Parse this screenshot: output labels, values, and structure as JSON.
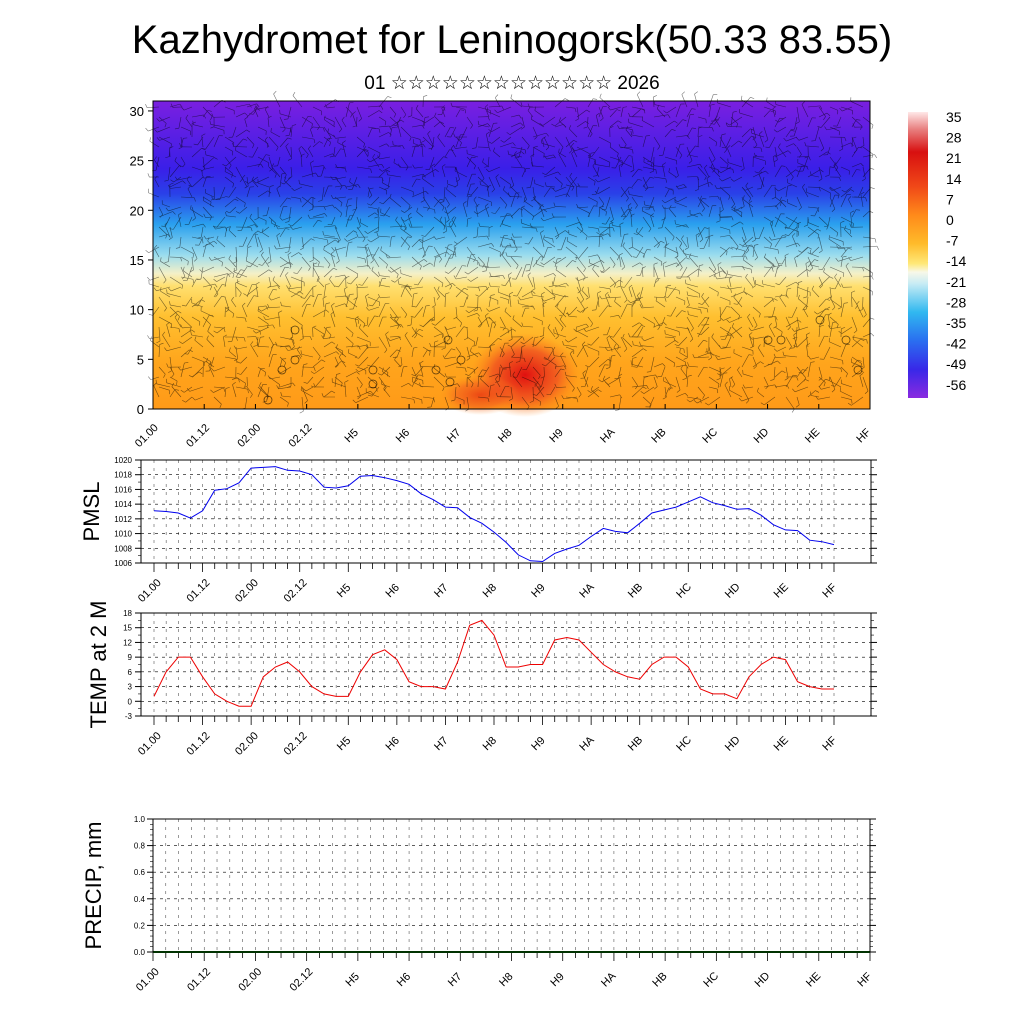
{
  "header": {
    "title": "Kazhydromet for Leninogorsk(50.33 83.55)",
    "subtitle": "01 ☆☆☆☆☆☆☆☆☆☆☆☆☆ 2026"
  },
  "colors": {
    "pmsl_line": "#0000ee",
    "temp_line": "#ee0000",
    "precip_line": "#006400",
    "grid": "#000000"
  },
  "chart_data": [
    {
      "id": "cross-section",
      "type": "heatmap",
      "title": "",
      "xlabel": "",
      "ylabel": "",
      "x_tick_labels": [
        "01.00",
        "01.12",
        "02.00",
        "02.12",
        "H5",
        "H6",
        "H7",
        "H8",
        "H9",
        "HA",
        "HB",
        "HC",
        "HD",
        "HE",
        "HF"
      ],
      "y_ticks": [
        0,
        5,
        10,
        15,
        20,
        25,
        30
      ],
      "ylim": [
        0,
        31
      ],
      "colorbar": {
        "labels": [
          "35",
          "28",
          "21",
          "14",
          "7",
          "0",
          "-7",
          "-14",
          "-21",
          "-28",
          "-35",
          "-42",
          "-49",
          "-56"
        ],
        "range": [
          -60,
          38
        ],
        "colors": [
          "#7a1fe0",
          "#3a2ee0",
          "#2a6cf0",
          "#2ab0f0",
          "#8fd8f0",
          "#eef6e0",
          "#ffe97a",
          "#ffcc33",
          "#ffaa22",
          "#ff7a1a",
          "#f04018",
          "#d01010",
          "#e8a0a0",
          "#ffe8e8"
        ]
      },
      "wind_barbs": "dense"
    },
    {
      "id": "pmsl",
      "type": "line",
      "ylabel": "PMSL",
      "ylim": [
        1006,
        1020
      ],
      "y_ticks": [
        1006,
        1008,
        1010,
        1012,
        1014,
        1016,
        1018,
        1020
      ],
      "x_tick_labels": [
        "01.00",
        "01.12",
        "02.00",
        "02.12",
        "H5",
        "H6",
        "H7",
        "H8",
        "H9",
        "HA",
        "HB",
        "HC",
        "HD",
        "HE",
        "HF"
      ],
      "x_tick_index": [
        0,
        4,
        8,
        12,
        16,
        20,
        24,
        28,
        32,
        36,
        40,
        44,
        48,
        52,
        56
      ],
      "series": [
        {
          "values": [
            1013.1,
            1013,
            1012.8,
            1012.1,
            1013.1,
            1015.9,
            1016.1,
            1016.9,
            1018.9,
            1019,
            1019.1,
            1018.6,
            1018.5,
            1018,
            1016.3,
            1016.2,
            1016.5,
            1017.8,
            1017.9,
            1017.6,
            1017.2,
            1016.7,
            1015.4,
            1014.6,
            1013.6,
            1013.5,
            1012.2,
            1011.4,
            1010.2,
            1008.8,
            1007.1,
            1006.3,
            1006.2,
            1007.3,
            1007.9,
            1008.4,
            1009.6,
            1010.7,
            1010.3,
            1010.1,
            1011.4,
            1012.8,
            1013.2,
            1013.6,
            1014.3,
            1015,
            1014.2,
            1013.8,
            1013.3,
            1013.4,
            1012.5,
            1011.2,
            1010.5,
            1010.4,
            1009.1,
            1008.9,
            1008.5
          ]
        }
      ]
    },
    {
      "id": "temp",
      "type": "line",
      "ylabel": "TEMP at 2 M",
      "ylim": [
        -3,
        18
      ],
      "y_ticks": [
        -3,
        0,
        3,
        6,
        9,
        12,
        15,
        18
      ],
      "x_tick_labels": [
        "01.00",
        "01.12",
        "02.00",
        "02.12",
        "H5",
        "H6",
        "H7",
        "H8",
        "H9",
        "HA",
        "HB",
        "HC",
        "HD",
        "HE",
        "HF"
      ],
      "x_tick_index": [
        0,
        4,
        8,
        12,
        16,
        20,
        24,
        28,
        32,
        36,
        40,
        44,
        48,
        52,
        56
      ],
      "series": [
        {
          "values": [
            1,
            6,
            9,
            9,
            5,
            1.5,
            0,
            -1,
            -1,
            5,
            7,
            8,
            6,
            3,
            1.5,
            1,
            1,
            6,
            9.5,
            10.5,
            8.5,
            4,
            3,
            3,
            2.5,
            8,
            15.5,
            16.5,
            13.5,
            7,
            7,
            7.5,
            7.5,
            12.5,
            13,
            12.5,
            10,
            7.5,
            6,
            5,
            4.5,
            7.5,
            9,
            9,
            7,
            2.5,
            1.5,
            1.5,
            0.5,
            5,
            7.5,
            9,
            8.5,
            4,
            3,
            2.5,
            2.5
          ]
        }
      ]
    },
    {
      "id": "precip",
      "type": "bar",
      "ylabel": "PRECIP, mm",
      "ylim": [
        0,
        1.0
      ],
      "y_ticks": [
        "0.0",
        "0.2",
        "0.4",
        "0.6",
        "0.8",
        "1.0"
      ],
      "x_tick_labels": [
        "01.00",
        "01.12",
        "02.00",
        "02.12",
        "H5",
        "H6",
        "H7",
        "H8",
        "H9",
        "HA",
        "HB",
        "HC",
        "HD",
        "HE",
        "HF"
      ],
      "values": [
        0,
        0,
        0,
        0,
        0,
        0,
        0,
        0,
        0,
        0,
        0,
        0,
        0,
        0,
        0,
        0,
        0,
        0,
        0,
        0,
        0,
        0,
        0,
        0,
        0,
        0,
        0,
        0,
        0,
        0,
        0,
        0,
        0,
        0,
        0,
        0,
        0,
        0,
        0,
        0,
        0,
        0,
        0,
        0,
        0,
        0,
        0,
        0,
        0,
        0,
        0,
        0,
        0,
        0,
        0,
        0,
        0
      ]
    }
  ]
}
